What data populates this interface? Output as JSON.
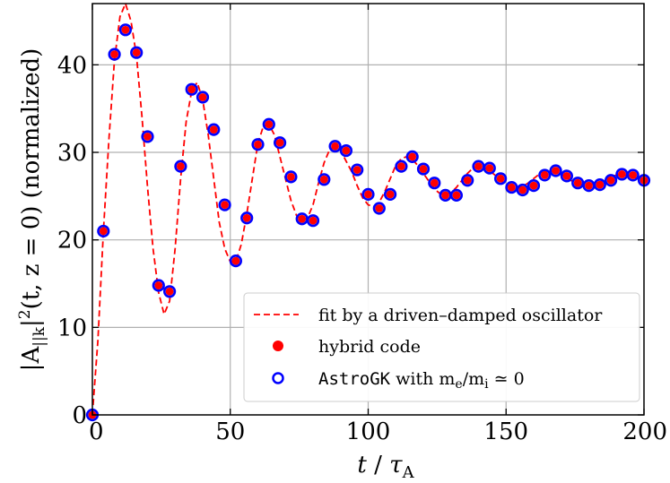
{
  "chart_data": {
    "type": "line",
    "title": "",
    "xlabel": "t / τA",
    "ylabel": "|A||k|²(t, z = 0) (normalized)",
    "xlim": [
      0,
      200
    ],
    "ylim": [
      0,
      47
    ],
    "xticks": [
      0,
      50,
      100,
      150,
      200
    ],
    "yticks": [
      0,
      10,
      20,
      30,
      40
    ],
    "grid": true,
    "legend_position": "lower-right",
    "series": [
      {
        "name": "fit by a driven–damped oscillator",
        "style": "dashed-line",
        "color": "#ff0000",
        "x": [
          0,
          2,
          4,
          6,
          8,
          10,
          12,
          14,
          16,
          18,
          20,
          22,
          24,
          26,
          28,
          30,
          32,
          34,
          36,
          38,
          40,
          42,
          44,
          46,
          48,
          50,
          52,
          54,
          56,
          58,
          60,
          62,
          64,
          66,
          68,
          70,
          72,
          74,
          76,
          78,
          80,
          82,
          84,
          86,
          88,
          90,
          92,
          94,
          96,
          98,
          100,
          102,
          104,
          106,
          108,
          110,
          112,
          114,
          116,
          118,
          120,
          122,
          124,
          126,
          128,
          130,
          132,
          134,
          136,
          138,
          140,
          142,
          144,
          146,
          148,
          150,
          152,
          154,
          156,
          158,
          160,
          162,
          164,
          166,
          168,
          170,
          172,
          174,
          176,
          178,
          180,
          182,
          184,
          186,
          188,
          190,
          192,
          194,
          196,
          198,
          200
        ],
        "y": [
          0,
          8.5,
          21,
          31.5,
          40.5,
          45.5,
          47,
          45,
          41,
          34,
          26,
          19,
          14,
          11.5,
          13,
          19,
          27,
          33.5,
          37,
          38,
          36,
          32,
          27,
          22,
          19,
          17.5,
          17.5,
          19.5,
          23,
          27,
          31,
          33,
          33.2,
          32,
          29.5,
          27,
          24.5,
          22.8,
          22.2,
          22.5,
          24,
          26.5,
          28.8,
          30.3,
          30.7,
          30.2,
          29,
          27.8,
          26.2,
          24.8,
          24,
          23.8,
          24.3,
          25.5,
          27,
          28.5,
          29.3,
          29.5,
          29.2,
          28.5,
          27.6,
          26.7,
          25.8,
          25.3,
          25.2,
          25.4,
          26,
          26.8,
          27.6,
          28.2,
          28.4,
          28.3,
          27.9,
          27.4,
          26.8,
          26.3,
          26,
          25.9,
          26.1,
          26.5,
          27,
          27.5,
          27.8,
          27.9,
          27.8,
          27.5,
          27.1,
          26.7,
          26.4,
          26.3,
          26.3,
          26.4,
          26.6,
          26.9,
          27.2,
          27.4,
          27.5,
          27.4,
          27.2,
          27,
          26.9
        ]
      },
      {
        "name": "hybrid code",
        "style": "filled-circle",
        "color": "#ff0000",
        "x": [
          0,
          4,
          8,
          12,
          16,
          20,
          24,
          28,
          32,
          36,
          40,
          44,
          48,
          52,
          56,
          60,
          64,
          68,
          72,
          76,
          80,
          84,
          88,
          92,
          96,
          100,
          104,
          108,
          112,
          116,
          120,
          124,
          128,
          132,
          136,
          140,
          144,
          148,
          152,
          156,
          160,
          164,
          168,
          172,
          176,
          180,
          184,
          188,
          192,
          196,
          200
        ],
        "y": [
          0,
          21,
          41.2,
          44,
          41.4,
          31.8,
          14.8,
          14.1,
          28.4,
          37.2,
          36.3,
          32.6,
          24,
          17.6,
          22.5,
          30.9,
          33.2,
          31.1,
          27.2,
          22.4,
          22.2,
          26.9,
          30.7,
          30.2,
          28,
          25.2,
          23.6,
          25.2,
          28.4,
          29.5,
          28.1,
          26.5,
          25.1,
          25.1,
          26.8,
          28.4,
          28.2,
          27,
          26,
          25.7,
          26.2,
          27.4,
          27.9,
          27.3,
          26.5,
          26.2,
          26.3,
          26.8,
          27.5,
          27.4,
          26.8
        ]
      },
      {
        "name": "AstroGK with m_e/m_i ≃ 0",
        "style": "open-circle",
        "color": "#0000ff",
        "x": [
          0,
          4,
          8,
          12,
          16,
          20,
          24,
          28,
          32,
          36,
          40,
          44,
          48,
          52,
          56,
          60,
          64,
          68,
          72,
          76,
          80,
          84,
          88,
          92,
          96,
          100,
          104,
          108,
          112,
          116,
          120,
          124,
          128,
          132,
          136,
          140,
          144,
          148,
          152,
          156,
          160,
          164,
          168,
          172,
          176,
          180,
          184,
          188,
          192,
          196,
          200
        ],
        "y": [
          0,
          21,
          41.2,
          44,
          41.4,
          31.8,
          14.8,
          14.1,
          28.4,
          37.2,
          36.3,
          32.6,
          24,
          17.6,
          22.5,
          30.9,
          33.2,
          31.1,
          27.2,
          22.4,
          22.2,
          26.9,
          30.7,
          30.2,
          28,
          25.2,
          23.6,
          25.2,
          28.4,
          29.5,
          28.1,
          26.5,
          25.1,
          25.1,
          26.8,
          28.4,
          28.2,
          27,
          26,
          25.7,
          26.2,
          27.4,
          27.9,
          27.3,
          26.5,
          26.2,
          26.3,
          26.8,
          27.5,
          27.4,
          26.8
        ]
      }
    ],
    "legend": {
      "fit_label": "fit by a driven–damped oscillator",
      "hybrid_label": "hybrid code",
      "astro_code": "AstroGK",
      "astro_rest": " with m",
      "astro_sub_e": "e",
      "astro_slash": "/m",
      "astro_sub_i": "i",
      "astro_tail": " ≃ 0"
    },
    "labels": {
      "x_main": "t",
      "x_slash": " / ",
      "x_tau": "τ",
      "x_sub": "A",
      "y_main": "|A",
      "y_sub": "||k",
      "y_close": "|",
      "y_sup": "2",
      "y_args": "(t, z = 0) (normalized)"
    },
    "colors": {
      "fit": "#ff0000",
      "hybrid_fill": "#ff0000",
      "astro_ring": "#0000ff",
      "grid": "#b0b0b0"
    }
  }
}
